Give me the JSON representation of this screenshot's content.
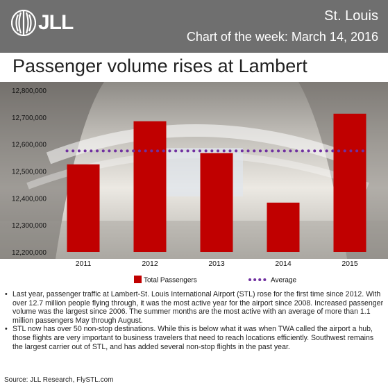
{
  "header": {
    "logo_text": "JLL",
    "city": "St. Louis",
    "chart_of_week": "Chart of the week: March 14, 2016",
    "background": "#6f6f6f"
  },
  "title": "Passenger volume rises at Lambert",
  "chart_data": {
    "type": "bar",
    "categories": [
      "2011",
      "2012",
      "2013",
      "2014",
      "2015"
    ],
    "series": [
      {
        "name": "Total Passengers",
        "type": "bar",
        "color": "#c00000",
        "values": [
          12525000,
          12685000,
          12567000,
          12383000,
          12713000
        ]
      },
      {
        "name": "Average",
        "type": "line",
        "style": "dotted",
        "color": "#7030a0",
        "values": [
          12575000,
          12575000,
          12575000,
          12575000,
          12575000
        ]
      }
    ],
    "ylim": [
      12200000,
      12800000
    ],
    "yticks": [
      12200000,
      12300000,
      12400000,
      12500000,
      12600000,
      12700000,
      12800000
    ],
    "ytick_labels": [
      "12,200,000",
      "12,300,000",
      "12,400,000",
      "12,500,000",
      "12,600,000",
      "12,700,000",
      "12,800,000"
    ],
    "legend_position": "bottom",
    "background": "photo of airport terminal interior"
  },
  "bullets": [
    "Last year, passenger traffic at Lambert-St. Louis International Airport (STL) rose for the first time since 2012. With over 12.7 million people flying through, it was the most active year for the airport since 2008. Increased passenger volume was the largest since 2006. The summer months are the most active with an average of more than 1.1 million passengers May through August.",
    "STL now has over 50 non-stop destinations. While this is below what it was when TWA called the airport a hub, those flights are very important to business travelers that need to reach locations efficiently. Southwest remains the largest carrier out of STL, and has added several non-stop flights in the past year."
  ],
  "source": "Source: JLL Research, FlySTL.com"
}
